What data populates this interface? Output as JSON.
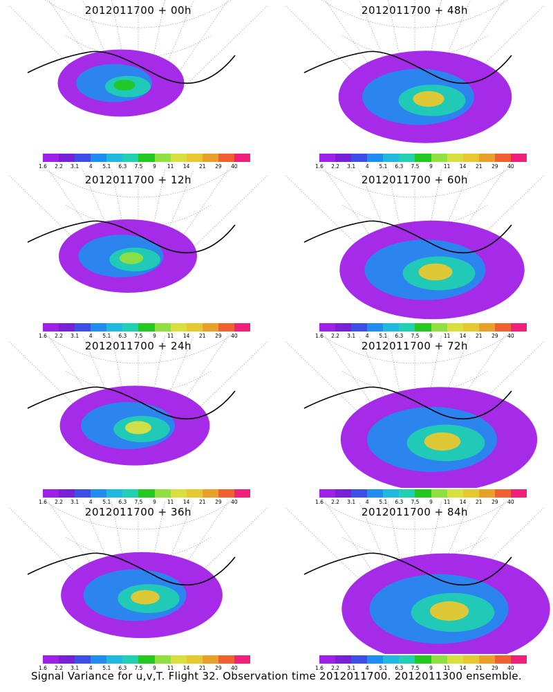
{
  "panels": [
    {
      "title": "2012011700  + 00h",
      "level": 0
    },
    {
      "title": "2012011700  + 48h",
      "level": 4
    },
    {
      "title": "2012011700  + 12h",
      "level": 1
    },
    {
      "title": "2012011700  + 60h",
      "level": 5
    },
    {
      "title": "2012011700  + 24h",
      "level": 2
    },
    {
      "title": "2012011700  + 72h",
      "level": 6
    },
    {
      "title": "2012011700  + 36h",
      "level": 3
    },
    {
      "title": "2012011700  + 84h",
      "level": 7
    }
  ],
  "colorbar": {
    "labels": [
      "1.6",
      "2.2",
      "3.1",
      "4",
      "5.1",
      "6.3",
      "7.5",
      "9",
      "11",
      "14",
      "21",
      "29",
      "40"
    ],
    "colors": [
      "#a020e8",
      "#7a1fd8",
      "#3d4ee8",
      "#1f8ef0",
      "#20b8e0",
      "#20d0b0",
      "#20c820",
      "#90e040",
      "#d8e040",
      "#e8c830",
      "#e8a028",
      "#f06030",
      "#f0207a"
    ]
  },
  "footer": "Signal Variance for u,v,T. Flight 32. Observation time 2012011700. 2012011300 ensemble."
}
